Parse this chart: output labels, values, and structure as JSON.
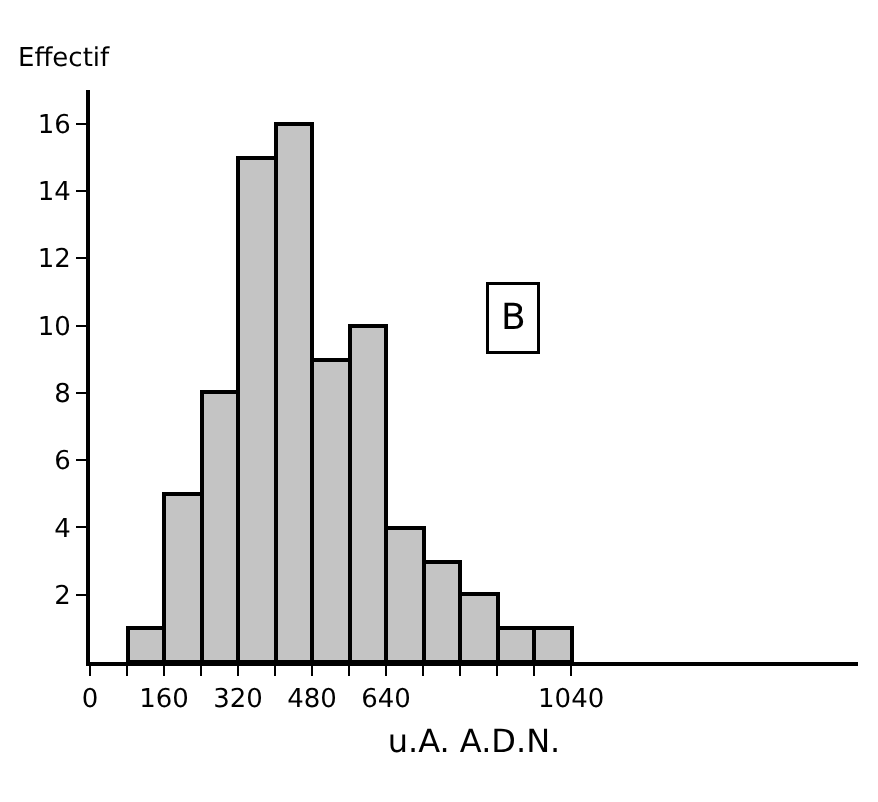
{
  "chart_data": {
    "type": "histogram",
    "ylabel": "Effectif",
    "xlabel": "u.A. A.D.N.",
    "annotations": [
      "B"
    ],
    "bins": [
      80,
      160,
      240,
      320,
      400,
      480,
      560,
      640,
      720,
      800,
      880,
      960,
      1040
    ],
    "values": [
      1,
      5,
      8,
      15,
      16,
      9,
      10,
      4,
      3,
      2,
      1,
      1
    ],
    "color": "#c4c4c4",
    "xlim": [
      0,
      1660
    ],
    "xticks": [
      0,
      {
        "value": 80,
        "label": null
      },
      160,
      {
        "value": 240,
        "label": null
      },
      320,
      {
        "value": 400,
        "label": null
      },
      480,
      {
        "value": 560,
        "label": null
      },
      640,
      {
        "value": 720,
        "label": null
      },
      {
        "value": 800,
        "label": null
      },
      {
        "value": 880,
        "label": null
      },
      {
        "value": 960,
        "label": null
      },
      1040
    ],
    "ylim": [
      0,
      17
    ],
    "yticks": [
      2,
      4,
      6,
      8,
      10,
      12,
      14,
      16
    ],
    "grid": false
  }
}
